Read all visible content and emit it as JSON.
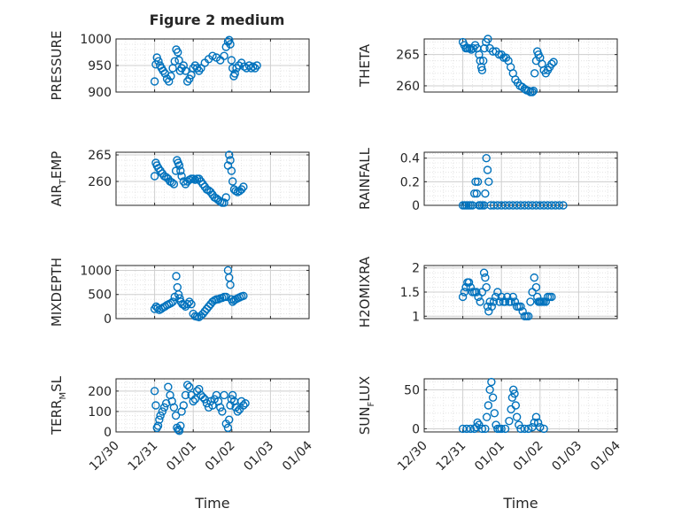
{
  "figure_title": "Figure 2 medium",
  "x_axis": {
    "label": "Time",
    "ticks": [
      "12/30",
      "12/31",
      "01/01",
      "01/02",
      "01/03",
      "01/04"
    ]
  },
  "colors": {
    "marker": "#0072BD",
    "text": "#262626",
    "grid": "#dfdfdf",
    "axis": "#262626"
  },
  "chart_data": [
    {
      "type": "scatter",
      "name": "pressure",
      "ylabel": "PRESSURE",
      "ylim": [
        900,
        1000
      ],
      "yticks": [
        900,
        950,
        1000
      ],
      "x": [
        1.0,
        1.03,
        1.06,
        1.1,
        1.14,
        1.18,
        1.22,
        1.27,
        1.32,
        1.37,
        1.42,
        1.47,
        1.52,
        1.56,
        1.6,
        1.63,
        1.66,
        1.7,
        1.75,
        1.8,
        1.85,
        1.9,
        1.95,
        2.0,
        2.05,
        2.1,
        2.15,
        2.2,
        2.3,
        2.4,
        2.5,
        2.6,
        2.7,
        2.8,
        2.85,
        2.9,
        2.93,
        2.96,
        2.99,
        3.02,
        3.05,
        3.08,
        3.12,
        3.18,
        3.25,
        3.32,
        3.38,
        3.45,
        3.5,
        3.55,
        3.6,
        3.65
      ],
      "values": [
        920,
        952,
        965,
        958,
        950,
        945,
        940,
        935,
        925,
        920,
        930,
        945,
        958,
        980,
        975,
        960,
        940,
        945,
        950,
        940,
        920,
        925,
        932,
        945,
        950,
        945,
        940,
        945,
        955,
        962,
        968,
        965,
        960,
        968,
        985,
        995,
        998,
        990,
        960,
        945,
        930,
        935,
        945,
        950,
        955,
        948,
        945,
        950,
        945,
        948,
        945,
        950
      ]
    },
    {
      "type": "scatter",
      "name": "theta",
      "ylabel": "THETA",
      "ylim": [
        259,
        267.5
      ],
      "yticks": [
        260,
        265
      ],
      "x": [
        1.0,
        1.04,
        1.08,
        1.12,
        1.17,
        1.22,
        1.27,
        1.32,
        1.37,
        1.42,
        1.45,
        1.48,
        1.5,
        1.53,
        1.56,
        1.6,
        1.65,
        1.7,
        1.78,
        1.86,
        1.94,
        2.0,
        2.06,
        2.12,
        2.18,
        2.24,
        2.3,
        2.36,
        2.42,
        2.48,
        2.54,
        2.6,
        2.65,
        2.7,
        2.75,
        2.8,
        2.83,
        2.86,
        2.9,
        2.93,
        2.96,
        3.0,
        3.05,
        3.1,
        3.15,
        3.2,
        3.25,
        3.3,
        3.35
      ],
      "values": [
        267,
        266.5,
        266,
        266,
        266,
        265.8,
        266,
        266.5,
        266,
        265,
        264,
        263,
        262.5,
        264,
        266,
        267,
        267.5,
        266,
        265.5,
        265.5,
        265,
        265,
        264.5,
        264.5,
        264,
        263,
        262,
        261,
        260.5,
        260,
        259.8,
        259.5,
        259.3,
        259.2,
        259,
        259,
        259.2,
        262,
        264,
        265.5,
        265,
        264.5,
        263.5,
        262.5,
        262,
        262.5,
        263,
        263.5,
        263.8
      ]
    },
    {
      "type": "scatter",
      "name": "air_temp",
      "ylabel": "AIR",
      "ylabel_sub": "T",
      "ylabel_tail": "EMP",
      "ylim": [
        255.5,
        265.5
      ],
      "yticks": [
        260,
        265
      ],
      "x": [
        1.0,
        1.03,
        1.06,
        1.1,
        1.15,
        1.2,
        1.25,
        1.3,
        1.35,
        1.4,
        1.45,
        1.5,
        1.55,
        1.58,
        1.61,
        1.64,
        1.67,
        1.7,
        1.75,
        1.8,
        1.85,
        1.9,
        1.95,
        2.0,
        2.05,
        2.1,
        2.15,
        2.2,
        2.25,
        2.3,
        2.35,
        2.4,
        2.45,
        2.5,
        2.55,
        2.6,
        2.65,
        2.7,
        2.75,
        2.8,
        2.85,
        2.9,
        2.93,
        2.96,
        2.99,
        3.02,
        3.06,
        3.1,
        3.15,
        3.2,
        3.25,
        3.3
      ],
      "values": [
        261,
        263.5,
        263,
        262.5,
        262,
        261.5,
        261,
        260.8,
        260.5,
        260,
        259.8,
        259.5,
        262,
        264,
        263.5,
        263,
        262,
        261,
        260,
        259.5,
        260,
        260.3,
        260.5,
        260.5,
        260.3,
        260.5,
        260.5,
        260,
        259.5,
        259,
        258.5,
        258.3,
        258,
        257.5,
        257,
        256.8,
        256.5,
        256.2,
        256,
        256,
        257,
        263,
        265,
        264,
        262,
        260,
        258.5,
        258.2,
        258,
        258.2,
        258.5,
        259
      ]
    },
    {
      "type": "scatter",
      "name": "rainfall",
      "ylabel": "RAINFALL",
      "ylim": [
        0,
        0.45
      ],
      "yticks": [
        0,
        0.2,
        0.4
      ],
      "x": [
        1.0,
        1.05,
        1.1,
        1.15,
        1.2,
        1.25,
        1.3,
        1.33,
        1.36,
        1.39,
        1.42,
        1.45,
        1.5,
        1.55,
        1.58,
        1.61,
        1.64,
        1.67,
        1.72,
        1.8,
        1.9,
        2.0,
        2.1,
        2.2,
        2.3,
        2.4,
        2.5,
        2.6,
        2.7,
        2.8,
        2.9,
        3.0,
        3.1,
        3.2,
        3.3,
        3.4,
        3.5,
        3.6
      ],
      "values": [
        0,
        0,
        0,
        0,
        0,
        0,
        0.1,
        0.2,
        0.1,
        0.2,
        0,
        0,
        0,
        0,
        0.1,
        0.4,
        0.3,
        0.2,
        0,
        0,
        0,
        0,
        0,
        0,
        0,
        0,
        0,
        0,
        0,
        0,
        0,
        0,
        0,
        0,
        0,
        0,
        0,
        0
      ]
    },
    {
      "type": "scatter",
      "name": "mixdepth",
      "ylabel": "MIXDEPTH",
      "ylim": [
        0,
        1100
      ],
      "yticks": [
        0,
        500,
        1000
      ],
      "x": [
        1.0,
        1.04,
        1.08,
        1.12,
        1.17,
        1.22,
        1.27,
        1.32,
        1.37,
        1.42,
        1.47,
        1.52,
        1.56,
        1.59,
        1.62,
        1.65,
        1.68,
        1.72,
        1.76,
        1.8,
        1.85,
        1.9,
        1.95,
        2.0,
        2.05,
        2.1,
        2.15,
        2.2,
        2.25,
        2.3,
        2.35,
        2.4,
        2.45,
        2.5,
        2.55,
        2.6,
        2.65,
        2.7,
        2.75,
        2.8,
        2.85,
        2.9,
        2.93,
        2.96,
        2.99,
        3.02,
        3.06,
        3.1,
        3.15,
        3.2,
        3.25,
        3.3
      ],
      "values": [
        200,
        250,
        220,
        180,
        200,
        230,
        250,
        280,
        300,
        320,
        350,
        450,
        880,
        650,
        500,
        420,
        350,
        300,
        280,
        250,
        300,
        350,
        300,
        100,
        50,
        40,
        30,
        60,
        100,
        150,
        200,
        250,
        300,
        350,
        380,
        400,
        400,
        420,
        430,
        450,
        450,
        1000,
        850,
        700,
        400,
        350,
        380,
        400,
        420,
        440,
        460,
        470
      ]
    },
    {
      "type": "scatter",
      "name": "h2omixra",
      "ylabel": "H2OMIXRA",
      "ylim": [
        0.95,
        2.05
      ],
      "yticks": [
        1,
        1.5,
        2
      ],
      "x": [
        1.0,
        1.04,
        1.08,
        1.12,
        1.16,
        1.2,
        1.25,
        1.3,
        1.35,
        1.4,
        1.45,
        1.5,
        1.55,
        1.58,
        1.61,
        1.64,
        1.67,
        1.7,
        1.75,
        1.8,
        1.85,
        1.9,
        1.95,
        2.0,
        2.05,
        2.1,
        2.15,
        2.2,
        2.25,
        2.3,
        2.35,
        2.4,
        2.45,
        2.5,
        2.55,
        2.6,
        2.65,
        2.7,
        2.75,
        2.8,
        2.85,
        2.9,
        2.93,
        2.96,
        2.99,
        3.02,
        3.06,
        3.1,
        3.15,
        3.2,
        3.25,
        3.3
      ],
      "values": [
        1.4,
        1.5,
        1.6,
        1.7,
        1.7,
        1.6,
        1.5,
        1.5,
        1.5,
        1.4,
        1.3,
        1.5,
        1.9,
        1.8,
        1.6,
        1.2,
        1.1,
        1.3,
        1.2,
        1.3,
        1.4,
        1.5,
        1.3,
        1.4,
        1.3,
        1.3,
        1.4,
        1.3,
        1.3,
        1.4,
        1.3,
        1.2,
        1.2,
        1.2,
        1.1,
        1.0,
        1.0,
        1.0,
        1.3,
        1.5,
        1.8,
        1.6,
        1.4,
        1.3,
        1.3,
        1.3,
        1.3,
        1.3,
        1.3,
        1.4,
        1.4,
        1.4
      ]
    },
    {
      "type": "scatter",
      "name": "terr_msl",
      "ylabel": "TERR",
      "ylabel_sub": "M",
      "ylabel_tail": "SL",
      "ylim": [
        0,
        260
      ],
      "yticks": [
        0,
        100,
        200
      ],
      "x": [
        1.0,
        1.03,
        1.06,
        1.09,
        1.12,
        1.15,
        1.2,
        1.25,
        1.3,
        1.35,
        1.4,
        1.45,
        1.5,
        1.55,
        1.58,
        1.61,
        1.64,
        1.67,
        1.7,
        1.75,
        1.8,
        1.85,
        1.9,
        1.95,
        2.0,
        2.05,
        2.1,
        2.15,
        2.2,
        2.25,
        2.3,
        2.35,
        2.4,
        2.45,
        2.5,
        2.55,
        2.6,
        2.65,
        2.7,
        2.75,
        2.8,
        2.85,
        2.9,
        2.93,
        2.96,
        2.99,
        3.02,
        3.06,
        3.1,
        3.15,
        3.2,
        3.25,
        3.3,
        3.35
      ],
      "values": [
        200,
        130,
        20,
        30,
        60,
        80,
        100,
        120,
        140,
        220,
        180,
        150,
        120,
        80,
        20,
        10,
        5,
        30,
        100,
        130,
        180,
        230,
        220,
        180,
        150,
        160,
        200,
        210,
        180,
        170,
        160,
        140,
        120,
        150,
        130,
        160,
        180,
        150,
        120,
        100,
        180,
        40,
        20,
        60,
        130,
        160,
        180,
        150,
        120,
        100,
        110,
        150,
        130,
        140
      ]
    },
    {
      "type": "scatter",
      "name": "sun_flux",
      "ylabel": "SUN",
      "ylabel_sub": "F",
      "ylabel_tail": "LUX",
      "ylim": [
        -4,
        64
      ],
      "yticks": [
        0,
        50
      ],
      "x": [
        1.0,
        1.1,
        1.2,
        1.3,
        1.35,
        1.38,
        1.42,
        1.5,
        1.58,
        1.62,
        1.66,
        1.7,
        1.74,
        1.78,
        1.82,
        1.86,
        1.9,
        1.95,
        2.0,
        2.1,
        2.2,
        2.25,
        2.28,
        2.31,
        2.34,
        2.37,
        2.4,
        2.45,
        2.5,
        2.6,
        2.7,
        2.8,
        2.85,
        2.9,
        2.95,
        3.0,
        3.1
      ],
      "values": [
        0,
        0,
        0,
        0,
        2,
        8,
        5,
        0,
        0,
        15,
        30,
        50,
        60,
        40,
        20,
        5,
        0,
        0,
        0,
        0,
        10,
        25,
        40,
        50,
        45,
        30,
        15,
        5,
        0,
        0,
        0,
        2,
        8,
        15,
        8,
        2,
        0
      ]
    }
  ]
}
